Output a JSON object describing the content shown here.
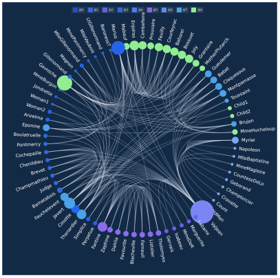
{
  "legend": {
    "items": [
      {
        "label": "群0",
        "color": "#1f4fd1"
      },
      {
        "label": "群1",
        "color": "#3a64e6"
      },
      {
        "label": "群2",
        "color": "#6c5ce7"
      },
      {
        "label": "群3",
        "color": "#2f6bd8"
      },
      {
        "label": "群4",
        "color": "#4b7ef0"
      },
      {
        "label": "群5",
        "color": "#8a63f0"
      },
      {
        "label": "群6",
        "color": "#5d8cf2"
      },
      {
        "label": "群7",
        "color": "#3fa7e6"
      },
      {
        "label": "群8",
        "color": "#90ee90"
      }
    ]
  },
  "nodes": [
    {
      "label": "Valjean",
      "color": "#7b86f2",
      "size": 17
    },
    {
      "label": "Marius",
      "color": "#2563eb",
      "size": 10
    },
    {
      "label": "Gavroche",
      "color": "#90ee90",
      "size": 11
    },
    {
      "label": "Javert",
      "color": "#4aa3e8",
      "size": 8
    },
    {
      "label": "Fantine",
      "color": "#8a6cf0",
      "size": 7
    },
    {
      "label": "Thenardier",
      "color": "#4aa3e8",
      "size": 7
    },
    {
      "label": "Myriel",
      "color": "#7aa7f5",
      "size": 5
    },
    {
      "label": "Enjolras",
      "color": "#90ee90",
      "size": 7
    },
    {
      "label": "Courfeyrac",
      "color": "#90ee90",
      "size": 6
    },
    {
      "label": "Combeferre",
      "color": "#90ee90",
      "size": 6
    },
    {
      "label": "Prouvaire",
      "color": "#90ee90",
      "size": 5
    },
    {
      "label": "Feuilly",
      "color": "#90ee90",
      "size": 6
    },
    {
      "label": "Bahorel",
      "color": "#90ee90",
      "size": 6
    },
    {
      "label": "Bossuet",
      "color": "#90ee90",
      "size": 6
    },
    {
      "label": "Joly",
      "color": "#90ee90",
      "size": 6
    },
    {
      "label": "Grantaire",
      "color": "#90ee90",
      "size": 5
    },
    {
      "label": "MotherPlutarch",
      "color": "#90ee90",
      "size": 4
    },
    {
      "label": "Gueulemer",
      "color": "#4aa3e8",
      "size": 5
    },
    {
      "label": "Babet",
      "color": "#4aa3e8",
      "size": 5
    },
    {
      "label": "Claquesous",
      "color": "#4aa3e8",
      "size": 5
    },
    {
      "label": "Montparnasse",
      "color": "#4aa3e8",
      "size": 5
    },
    {
      "label": "Toussaint",
      "color": "#4aa3e8",
      "size": 3
    },
    {
      "label": "Child1",
      "color": "#90ee90",
      "size": 3
    },
    {
      "label": "Child2",
      "color": "#90ee90",
      "size": 3
    },
    {
      "label": "Brujon",
      "color": "#4aa3e8",
      "size": 4
    },
    {
      "label": "MmeHucheloup",
      "color": "#90ee90",
      "size": 4
    },
    {
      "label": "Napoleon",
      "color": "#7aa7f5",
      "size": 2
    },
    {
      "label": "MlleBaptistine",
      "color": "#7aa7f5",
      "size": 2
    },
    {
      "label": "MmeMagloire",
      "color": "#7aa7f5",
      "size": 2
    },
    {
      "label": "CountessDeLo",
      "color": "#7aa7f5",
      "size": 2
    },
    {
      "label": "Geborand",
      "color": "#7aa7f5",
      "size": 2
    },
    {
      "label": "Champtercier",
      "color": "#7aa7f5",
      "size": 2
    },
    {
      "label": "Cravatte",
      "color": "#7aa7f5",
      "size": 2
    },
    {
      "label": "Count",
      "color": "#7aa7f5",
      "size": 2
    },
    {
      "label": "OldMan",
      "color": "#7aa7f5",
      "size": 2
    },
    {
      "label": "Labarre",
      "color": "#6c5ce7",
      "size": 3
    },
    {
      "label": "Marguerite",
      "color": "#6c5ce7",
      "size": 3
    },
    {
      "label": "MmeDeR",
      "color": "#6c5ce7",
      "size": 3
    },
    {
      "label": "Isabeau",
      "color": "#6c5ce7",
      "size": 3
    },
    {
      "label": "Gervais",
      "color": "#6c5ce7",
      "size": 3
    },
    {
      "label": "Tholomyes",
      "color": "#8a6cf0",
      "size": 4
    },
    {
      "label": "Listolier",
      "color": "#8a6cf0",
      "size": 4
    },
    {
      "label": "Fameuil",
      "color": "#8a6cf0",
      "size": 4
    },
    {
      "label": "Blacheville",
      "color": "#8a6cf0",
      "size": 4
    },
    {
      "label": "Favourite",
      "color": "#8a6cf0",
      "size": 4
    },
    {
      "label": "Dahlia",
      "color": "#8a6cf0",
      "size": 4
    },
    {
      "label": "Zephine",
      "color": "#8a6cf0",
      "size": 4
    },
    {
      "label": "Perpetue",
      "color": "#2563eb",
      "size": 3
    },
    {
      "label": "Simplice",
      "color": "#2563eb",
      "size": 3
    },
    {
      "label": "Cosette",
      "color": "#2563eb",
      "size": 6
    },
    {
      "label": "Woman2",
      "color": "#2563eb",
      "size": 3
    },
    {
      "label": "Fauchelevent",
      "color": "#4aa3e8",
      "size": 6
    },
    {
      "label": "Bamatabois",
      "color": "#2f6bd8",
      "size": 4
    },
    {
      "label": "Judge",
      "color": "#2f6bd8",
      "size": 3
    },
    {
      "label": "Champmathieu",
      "color": "#2f6bd8",
      "size": 3
    },
    {
      "label": "Brevet",
      "color": "#2f6bd8",
      "size": 3
    },
    {
      "label": "Chenildieu",
      "color": "#2f6bd8",
      "size": 3
    },
    {
      "label": "Cochepaille",
      "color": "#2f6bd8",
      "size": 3
    },
    {
      "label": "Pontmercy",
      "color": "#2f6bd8",
      "size": 3
    },
    {
      "label": "Boulatruelle",
      "color": "#2f6bd8",
      "size": 3
    },
    {
      "label": "Eponine",
      "color": "#4aa3e8",
      "size": 5
    },
    {
      "label": "Anzelma",
      "color": "#2563eb",
      "size": 3
    },
    {
      "label": "Woman1",
      "color": "#2563eb",
      "size": 2
    },
    {
      "label": "Jondrette",
      "color": "#2563eb",
      "size": 2
    },
    {
      "label": "MmeBurgon",
      "color": "#2563eb",
      "size": 2
    },
    {
      "label": "Gillenormand",
      "color": "#2563eb",
      "size": 3
    },
    {
      "label": "Magnon",
      "color": "#2563eb",
      "size": 2
    },
    {
      "label": "MlleGillenormand",
      "color": "#2563eb",
      "size": 3
    },
    {
      "label": "MmePontmercy",
      "color": "#2563eb",
      "size": 2
    },
    {
      "label": "MlleVaubois",
      "color": "#2563eb",
      "size": 2
    },
    {
      "label": "LtGillenormand",
      "color": "#2563eb",
      "size": 2
    },
    {
      "label": "BaronessT",
      "color": "#2563eb",
      "size": 2
    },
    {
      "label": "Mabeuf",
      "color": "#90ee90",
      "size": 5
    }
  ],
  "order": [
    "Mabeuf",
    "Enjolras",
    "Combeferre",
    "Prouvaire",
    "Feuilly",
    "Courfeyrac",
    "Bahorel",
    "Bossuet",
    "Joly",
    "Grantaire",
    "MotherPlutarch",
    "Gueulemer",
    "Babet",
    "Claquesous",
    "Montparnasse",
    "Toussaint",
    "Child1",
    "Child2",
    "Brujon",
    "MmeHucheloup",
    "Myriel",
    "Napoleon",
    "MlleBaptistine",
    "MmeMagloire",
    "CountessDeLo",
    "Geborand",
    "Champtercier",
    "Cravatte",
    "Count",
    "OldMan",
    "Valjean",
    "Labarre",
    "Marguerite",
    "MmeDeR",
    "Isabeau",
    "Gervais",
    "Tholomyes",
    "Listolier",
    "Fameuil",
    "Blacheville",
    "Favourite",
    "Dahlia",
    "Zephine",
    "Fantine",
    "Perpetue",
    "Simplice",
    "Thenardier",
    "Cosette",
    "Javert",
    "Fauchelevent",
    "Bamatabois",
    "Judge",
    "Champmathieu",
    "Brevet",
    "Chenildieu",
    "Cochepaille",
    "Pontmercy",
    "Boulatruelle",
    "Eponine",
    "Anzelma",
    "Woman2",
    "Woman1",
    "Jondrette",
    "MmeBurgon",
    "Gavroche",
    "Gillenormand",
    "Magnon",
    "MlleGillenormand",
    "MmePontmercy",
    "MlleVaubois",
    "LtGillenormand",
    "BaronessT",
    "Marius"
  ],
  "links": [
    [
      "Valjean",
      "Marius"
    ],
    [
      "Valjean",
      "Cosette"
    ],
    [
      "Valjean",
      "Javert"
    ],
    [
      "Valjean",
      "Fantine"
    ],
    [
      "Valjean",
      "Thenardier"
    ],
    [
      "Valjean",
      "Myriel"
    ],
    [
      "Valjean",
      "Fauchelevent"
    ],
    [
      "Valjean",
      "Gavroche"
    ],
    [
      "Valjean",
      "Enjolras"
    ],
    [
      "Valjean",
      "Labarre"
    ],
    [
      "Valjean",
      "Marguerite"
    ],
    [
      "Valjean",
      "MmeDeR"
    ],
    [
      "Valjean",
      "Isabeau"
    ],
    [
      "Valjean",
      "Gervais"
    ],
    [
      "Valjean",
      "Bamatabois"
    ],
    [
      "Valjean",
      "Judge"
    ],
    [
      "Valjean",
      "Champmathieu"
    ],
    [
      "Valjean",
      "Brevet"
    ],
    [
      "Valjean",
      "Chenildieu"
    ],
    [
      "Valjean",
      "Cochepaille"
    ],
    [
      "Valjean",
      "Woman1"
    ],
    [
      "Valjean",
      "Woman2"
    ],
    [
      "Valjean",
      "Toussaint"
    ],
    [
      "Valjean",
      "Simplice"
    ],
    [
      "Valjean",
      "Perpetue"
    ],
    [
      "Valjean",
      "Gueulemer"
    ],
    [
      "Valjean",
      "Babet"
    ],
    [
      "Valjean",
      "Claquesous"
    ],
    [
      "Valjean",
      "Montparnasse"
    ],
    [
      "Valjean",
      "MlleGillenormand"
    ],
    [
      "Valjean",
      "Gillenormand"
    ],
    [
      "Valjean",
      "Brujon"
    ],
    [
      "Valjean",
      "MlleBaptistine"
    ],
    [
      "Valjean",
      "MmeMagloire"
    ],
    [
      "Myriel",
      "Napoleon"
    ],
    [
      "Myriel",
      "MlleBaptistine"
    ],
    [
      "Myriel",
      "MmeMagloire"
    ],
    [
      "Myriel",
      "CountessDeLo"
    ],
    [
      "Myriel",
      "Geborand"
    ],
    [
      "Myriel",
      "Champtercier"
    ],
    [
      "Myriel",
      "Cravatte"
    ],
    [
      "Myriel",
      "Count"
    ],
    [
      "Myriel",
      "OldMan"
    ],
    [
      "Marius",
      "Cosette"
    ],
    [
      "Marius",
      "Gavroche"
    ],
    [
      "Marius",
      "Enjolras"
    ],
    [
      "Marius",
      "Courfeyrac"
    ],
    [
      "Marius",
      "Combeferre"
    ],
    [
      "Marius",
      "Feuilly"
    ],
    [
      "Marius",
      "Bahorel"
    ],
    [
      "Marius",
      "Bossuet"
    ],
    [
      "Marius",
      "Joly"
    ],
    [
      "Marius",
      "Prouvaire"
    ],
    [
      "Marius",
      "Mabeuf"
    ],
    [
      "Marius",
      "Eponine"
    ],
    [
      "Marius",
      "Thenardier"
    ],
    [
      "Marius",
      "Gillenormand"
    ],
    [
      "Marius",
      "MlleGillenormand"
    ],
    [
      "Marius",
      "Pontmercy"
    ],
    [
      "Marius",
      "LtGillenormand"
    ],
    [
      "Marius",
      "BaronessT"
    ],
    [
      "Marius",
      "Tholomyes"
    ],
    [
      "Marius",
      "Javert"
    ],
    [
      "Gavroche",
      "Enjolras"
    ],
    [
      "Gavroche",
      "Courfeyrac"
    ],
    [
      "Gavroche",
      "Combeferre"
    ],
    [
      "Gavroche",
      "Feuilly"
    ],
    [
      "Gavroche",
      "Bahorel"
    ],
    [
      "Gavroche",
      "Bossuet"
    ],
    [
      "Gavroche",
      "Joly"
    ],
    [
      "Gavroche",
      "Prouvaire"
    ],
    [
      "Gavroche",
      "Grantaire"
    ],
    [
      "Gavroche",
      "Mabeuf"
    ],
    [
      "Gavroche",
      "Thenardier"
    ],
    [
      "Gavroche",
      "Javert"
    ],
    [
      "Gavroche",
      "Gueulemer"
    ],
    [
      "Gavroche",
      "Babet"
    ],
    [
      "Gavroche",
      "Montparnasse"
    ],
    [
      "Gavroche",
      "Child1"
    ],
    [
      "Gavroche",
      "Child2"
    ],
    [
      "Gavroche",
      "MmeBurgon"
    ],
    [
      "Gavroche",
      "MmeHucheloup"
    ],
    [
      "Gavroche",
      "Brujon"
    ],
    [
      "Enjolras",
      "Combeferre"
    ],
    [
      "Enjolras",
      "Courfeyrac"
    ],
    [
      "Enjolras",
      "Feuilly"
    ],
    [
      "Enjolras",
      "Bahorel"
    ],
    [
      "Enjolras",
      "Bossuet"
    ],
    [
      "Enjolras",
      "Joly"
    ],
    [
      "Enjolras",
      "Prouvaire"
    ],
    [
      "Enjolras",
      "Grantaire"
    ],
    [
      "Enjolras",
      "Javert"
    ],
    [
      "Enjolras",
      "Mabeuf"
    ],
    [
      "Enjolras",
      "Eponine"
    ],
    [
      "Enjolras",
      "MmeHucheloup"
    ],
    [
      "Courfeyrac",
      "Combeferre"
    ],
    [
      "Courfeyrac",
      "Bossuet"
    ],
    [
      "Courfeyrac",
      "Joly"
    ],
    [
      "Courfeyrac",
      "Eponine"
    ],
    [
      "Courfeyrac",
      "Mabeuf"
    ],
    [
      "Courfeyrac",
      "MmeHucheloup"
    ],
    [
      "Bossuet",
      "Joly"
    ],
    [
      "Bossuet",
      "Grantaire"
    ],
    [
      "Bossuet",
      "Mabeuf"
    ],
    [
      "Bossuet",
      "MmeHucheloup"
    ],
    [
      "Joly",
      "Grantaire"
    ],
    [
      "Joly",
      "MmeHucheloup"
    ],
    [
      "Bahorel",
      "Grantaire"
    ],
    [
      "Bahorel",
      "MmeHucheloup"
    ],
    [
      "Feuilly",
      "Mabeuf"
    ],
    [
      "Feuilly",
      "Grantaire"
    ],
    [
      "Combeferre",
      "Mabeuf"
    ],
    [
      "Combeferre",
      "Grantaire"
    ],
    [
      "Prouvaire",
      "Grantaire"
    ],
    [
      "Grantaire",
      "MotherPlutarch"
    ],
    [
      "Mabeuf",
      "MotherPlutarch"
    ],
    [
      "Mabeuf",
      "Eponine"
    ],
    [
      "Thenardier",
      "Javert"
    ],
    [
      "Thenardier",
      "Eponine"
    ],
    [
      "Thenardier",
      "Cosette"
    ],
    [
      "Thenardier",
      "Fantine"
    ],
    [
      "Thenardier",
      "Gueulemer"
    ],
    [
      "Thenardier",
      "Babet"
    ],
    [
      "Thenardier",
      "Claquesous"
    ],
    [
      "Thenardier",
      "Montparnasse"
    ],
    [
      "Thenardier",
      "Brujon"
    ],
    [
      "Thenardier",
      "Anzelma"
    ],
    [
      "Thenardier",
      "Boulatruelle"
    ],
    [
      "Thenardier",
      "Pontmercy"
    ],
    [
      "Thenardier",
      "Jondrette"
    ],
    [
      "Thenardier",
      "Magnon"
    ],
    [
      "Javert",
      "Fantine"
    ],
    [
      "Javert",
      "Cosette"
    ],
    [
      "Javert",
      "Eponine"
    ],
    [
      "Javert",
      "Fauchelevent"
    ],
    [
      "Javert",
      "Bamatabois"
    ],
    [
      "Javert",
      "Gueulemer"
    ],
    [
      "Javert",
      "Babet"
    ],
    [
      "Javert",
      "Claquesous"
    ],
    [
      "Javert",
      "Montparnasse"
    ],
    [
      "Javert",
      "Brujon"
    ],
    [
      "Javert",
      "Simplice"
    ],
    [
      "Javert",
      "Toussaint"
    ],
    [
      "Javert",
      "Woman1"
    ],
    [
      "Javert",
      "Champmathieu"
    ],
    [
      "Javert",
      "Judge"
    ],
    [
      "Fantine",
      "Tholomyes"
    ],
    [
      "Fantine",
      "Listolier"
    ],
    [
      "Fantine",
      "Fameuil"
    ],
    [
      "Fantine",
      "Blacheville"
    ],
    [
      "Fantine",
      "Favourite"
    ],
    [
      "Fantine",
      "Dahlia"
    ],
    [
      "Fantine",
      "Zephine"
    ],
    [
      "Fantine",
      "Marguerite"
    ],
    [
      "Fantine",
      "Perpetue"
    ],
    [
      "Fantine",
      "Simplice"
    ],
    [
      "Fantine",
      "Bamatabois"
    ],
    [
      "Tholomyes",
      "Listolier"
    ],
    [
      "Tholomyes",
      "Fameuil"
    ],
    [
      "Tholomyes",
      "Blacheville"
    ],
    [
      "Tholomyes",
      "Favourite"
    ],
    [
      "Tholomyes",
      "Dahlia"
    ],
    [
      "Tholomyes",
      "Zephine"
    ],
    [
      "Listolier",
      "Fameuil"
    ],
    [
      "Listolier",
      "Blacheville"
    ],
    [
      "Listolier",
      "Favourite"
    ],
    [
      "Fameuil",
      "Blacheville"
    ],
    [
      "Fameuil",
      "Dahlia"
    ],
    [
      "Blacheville",
      "Zephine"
    ],
    [
      "Favourite",
      "Dahlia"
    ],
    [
      "Dahlia",
      "Zephine"
    ],
    [
      "Cosette",
      "Tholomyes"
    ],
    [
      "Cosette",
      "Gillenormand"
    ],
    [
      "Cosette",
      "MlleGillenormand"
    ],
    [
      "Cosette",
      "Woman2"
    ],
    [
      "Cosette",
      "Toussaint"
    ],
    [
      "Eponine",
      "Anzelma"
    ],
    [
      "Eponine",
      "Montparnasse"
    ],
    [
      "Eponine",
      "Brujon"
    ],
    [
      "Eponine",
      "Gueulemer"
    ],
    [
      "Eponine",
      "Babet"
    ],
    [
      "Eponine",
      "Claquesous"
    ],
    [
      "Gueulemer",
      "Babet"
    ],
    [
      "Gueulemer",
      "Claquesous"
    ],
    [
      "Gueulemer",
      "Montparnasse"
    ],
    [
      "Gueulemer",
      "Brujon"
    ],
    [
      "Babet",
      "Claquesous"
    ],
    [
      "Babet",
      "Montparnasse"
    ],
    [
      "Babet",
      "Brujon"
    ],
    [
      "Claquesous",
      "Montparnasse"
    ],
    [
      "Claquesous",
      "Brujon"
    ],
    [
      "Montparnasse",
      "Brujon"
    ],
    [
      "Gillenormand",
      "MlleGillenormand"
    ],
    [
      "Gillenormand",
      "Magnon"
    ],
    [
      "Gillenormand",
      "MmePontmercy"
    ],
    [
      "Gillenormand",
      "Pontmercy"
    ],
    [
      "Gillenormand",
      "BaronessT"
    ],
    [
      "Gillenormand",
      "LtGillenormand"
    ],
    [
      "MlleGillenormand",
      "MmePontmercy"
    ],
    [
      "MlleGillenormand",
      "MlleVaubois"
    ],
    [
      "MlleGillenormand",
      "LtGillenormand"
    ],
    [
      "Bamatabois",
      "Judge"
    ],
    [
      "Bamatabois",
      "Champmathieu"
    ],
    [
      "Bamatabois",
      "Brevet"
    ],
    [
      "Bamatabois",
      "Chenildieu"
    ],
    [
      "Bamatabois",
      "Cochepaille"
    ],
    [
      "Judge",
      "Champmathieu"
    ],
    [
      "Judge",
      "Brevet"
    ],
    [
      "Judge",
      "Chenildieu"
    ],
    [
      "Judge",
      "Cochepaille"
    ],
    [
      "Champmathieu",
      "Brevet"
    ],
    [
      "Champmathieu",
      "Chenildieu"
    ],
    [
      "Champmathieu",
      "Cochepaille"
    ],
    [
      "Brevet",
      "Chenildieu"
    ],
    [
      "Brevet",
      "Cochepaille"
    ],
    [
      "Chenildieu",
      "Cochepaille"
    ],
    [
      "Fauchelevent",
      "MotherPlutarch"
    ],
    [
      "Fauchelevent",
      "Gervais"
    ],
    [
      "Fauchelevent",
      "Isabeau"
    ],
    [
      "Fauchelevent",
      "MmeDeR"
    ],
    [
      "Child1",
      "Child2"
    ],
    [
      "Mabeuf",
      "Courfeyrac"
    ],
    [
      "Jondrette",
      "MmeBurgon"
    ],
    [
      "Perpetue",
      "Simplice"
    ],
    [
      "Boulatruelle",
      "Woman1"
    ],
    [
      "Pontmercy",
      "MmePontmercy"
    ],
    [
      "Anzelma",
      "Magnon"
    ]
  ]
}
